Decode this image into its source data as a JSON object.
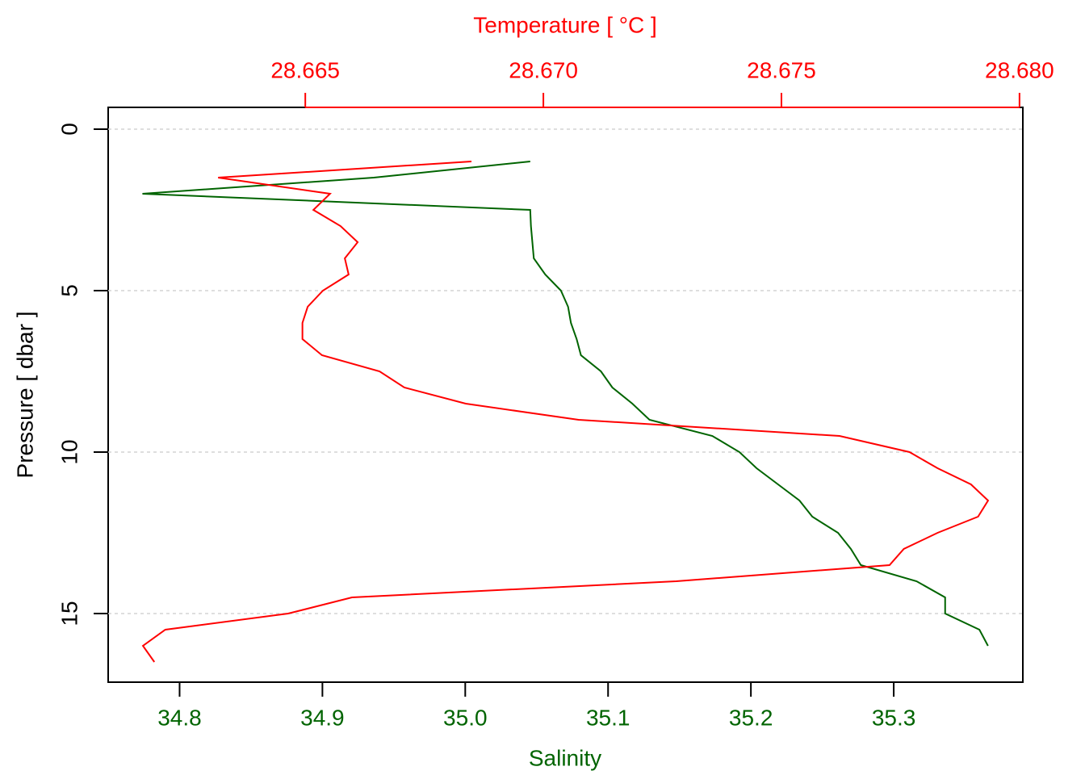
{
  "chart_data": {
    "type": "profile",
    "xlabel": "Salinity",
    "x2label": "Temperature [ °C ]",
    "ylabel": "Pressure [ dbar ]",
    "y": [
      1,
      1.5,
      2,
      2.5,
      3,
      3.5,
      4,
      4.5,
      5,
      5.5,
      6,
      6.5,
      7,
      7.5,
      8,
      8.5,
      9,
      9.5,
      10,
      10.5,
      11,
      11.5,
      12,
      12.5,
      13,
      13.5,
      14,
      14.5,
      15,
      15.5,
      16,
      16.5
    ],
    "series": [
      {
        "name": "Salinity",
        "color": "#006400",
        "axis": "x",
        "values": [
          35.0455,
          34.936,
          34.774,
          35.0455,
          35.046,
          35.047,
          35.048,
          35.056,
          35.067,
          35.072,
          35.074,
          35.078,
          35.081,
          35.095,
          35.103,
          35.117,
          35.129,
          35.173,
          35.192,
          35.204,
          35.219,
          35.234,
          35.243,
          35.261,
          35.27,
          35.277,
          35.316,
          35.336,
          35.336,
          35.36,
          35.366,
          null
        ]
      },
      {
        "name": "Temperature",
        "color": "#ff0000",
        "axis": "x2",
        "values": [
          28.66849,
          28.66317,
          28.66552,
          28.66517,
          28.66574,
          28.6661,
          28.66583,
          28.66591,
          28.66537,
          28.66505,
          28.66494,
          28.66494,
          28.66535,
          28.66656,
          28.66708,
          28.66837,
          28.67074,
          28.67622,
          28.67769,
          28.67828,
          28.67898,
          28.67934,
          28.67913,
          28.67828,
          28.67757,
          28.67727,
          28.67279,
          28.66598,
          28.66464,
          28.66206,
          28.66159,
          28.66183
        ]
      }
    ],
    "xlim": [
      34.75,
      35.3904
    ],
    "xticks": [
      34.8,
      34.9,
      {
        "value": 35,
        "label": "35.0"
      },
      35.1,
      35.2,
      35.3
    ],
    "x2lim": [
      28.66086,
      28.68007
    ],
    "x2ticks": [
      28.665,
      {
        "value": 28.67,
        "label": "28.670"
      },
      28.675,
      {
        "value": 28.68,
        "label": "28.680"
      }
    ],
    "ylim": [
      -0.675,
      17.125
    ],
    "y_inverted": true,
    "yticks": [
      0,
      5,
      10,
      15
    ],
    "grid": true
  }
}
